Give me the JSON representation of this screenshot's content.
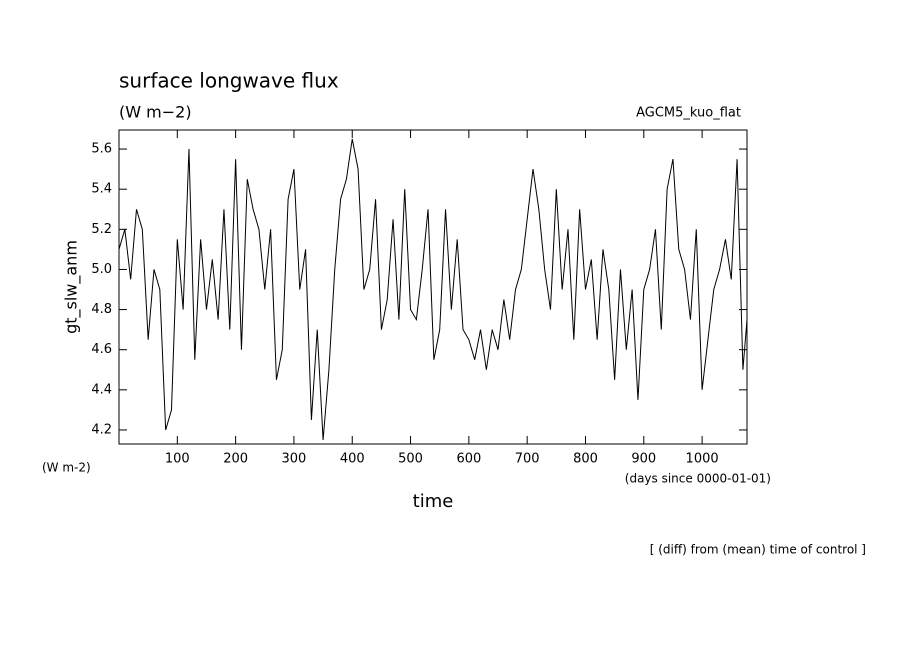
{
  "chart_data": {
    "type": "line",
    "title": "surface longwave flux",
    "subtitle": "(W m−2)",
    "annotation": "AGCM5_kuo_flat",
    "y_label": "gt_slw_anm",
    "y_unit": "(W m-2)",
    "x_label": "time",
    "x_unit": "(days since 0000-01-01)",
    "footer": "[ (diff) from (mean) time of control ]",
    "xlim": [
      0,
      1077
    ],
    "ylim": [
      4.13,
      5.695
    ],
    "xticks": [
      100,
      200,
      300,
      400,
      500,
      600,
      700,
      800,
      900,
      1000
    ],
    "yticks": [
      {
        "value": 4.2,
        "label": "4.2"
      },
      {
        "value": 4.4,
        "label": "4.4"
      },
      {
        "value": 4.6,
        "label": "4.6"
      },
      {
        "value": 4.8,
        "label": "4.8"
      },
      {
        "value": 5.0,
        "label": "5.0"
      },
      {
        "value": 5.2,
        "label": "5.2"
      },
      {
        "value": 5.4,
        "label": "5.4"
      },
      {
        "value": 5.6,
        "label": "5.6"
      }
    ],
    "x": [
      0,
      10,
      20,
      30,
      40,
      50,
      60,
      70,
      80,
      90,
      100,
      110,
      120,
      130,
      140,
      150,
      160,
      170,
      180,
      190,
      200,
      210,
      220,
      230,
      240,
      250,
      260,
      270,
      280,
      290,
      300,
      310,
      320,
      330,
      340,
      350,
      360,
      370,
      380,
      390,
      400,
      410,
      420,
      430,
      440,
      450,
      460,
      470,
      480,
      490,
      500,
      510,
      520,
      530,
      540,
      550,
      560,
      570,
      580,
      590,
      600,
      610,
      620,
      630,
      640,
      650,
      660,
      670,
      680,
      690,
      700,
      710,
      720,
      730,
      740,
      750,
      760,
      770,
      780,
      790,
      800,
      810,
      820,
      830,
      840,
      850,
      860,
      870,
      880,
      890,
      900,
      910,
      920,
      930,
      940,
      950,
      960,
      970,
      980,
      990,
      1000,
      1010,
      1020,
      1030,
      1040,
      1050,
      1060,
      1070,
      1077
    ],
    "series": [
      {
        "color": "#000000",
        "values": [
          5.1,
          5.2,
          4.95,
          5.3,
          5.2,
          4.65,
          5.0,
          4.9,
          4.2,
          4.3,
          5.15,
          4.8,
          5.6,
          4.55,
          5.15,
          4.8,
          5.05,
          4.75,
          5.3,
          4.7,
          5.55,
          4.6,
          5.45,
          5.3,
          5.2,
          4.9,
          5.2,
          4.45,
          4.6,
          5.35,
          5.5,
          4.9,
          5.1,
          4.25,
          4.7,
          4.15,
          4.5,
          5.0,
          5.35,
          5.45,
          5.65,
          5.5,
          4.9,
          5.0,
          5.35,
          4.7,
          4.85,
          5.25,
          4.75,
          5.4,
          4.8,
          4.75,
          5.0,
          5.3,
          4.55,
          4.7,
          5.3,
          4.8,
          5.15,
          4.7,
          4.65,
          4.55,
          4.7,
          4.5,
          4.7,
          4.6,
          4.85,
          4.65,
          4.9,
          5.0,
          5.25,
          5.5,
          5.3,
          5.0,
          4.8,
          5.4,
          4.9,
          5.2,
          4.65,
          5.3,
          4.9,
          5.05,
          4.65,
          5.1,
          4.9,
          4.45,
          5.0,
          4.6,
          4.9,
          4.35,
          4.9,
          5.0,
          5.2,
          4.7,
          5.4,
          5.55,
          5.1,
          5.0,
          4.75,
          5.2,
          4.4,
          4.65,
          4.9,
          5.0,
          5.15,
          4.95,
          5.55,
          4.5,
          4.75
        ]
      }
    ]
  }
}
